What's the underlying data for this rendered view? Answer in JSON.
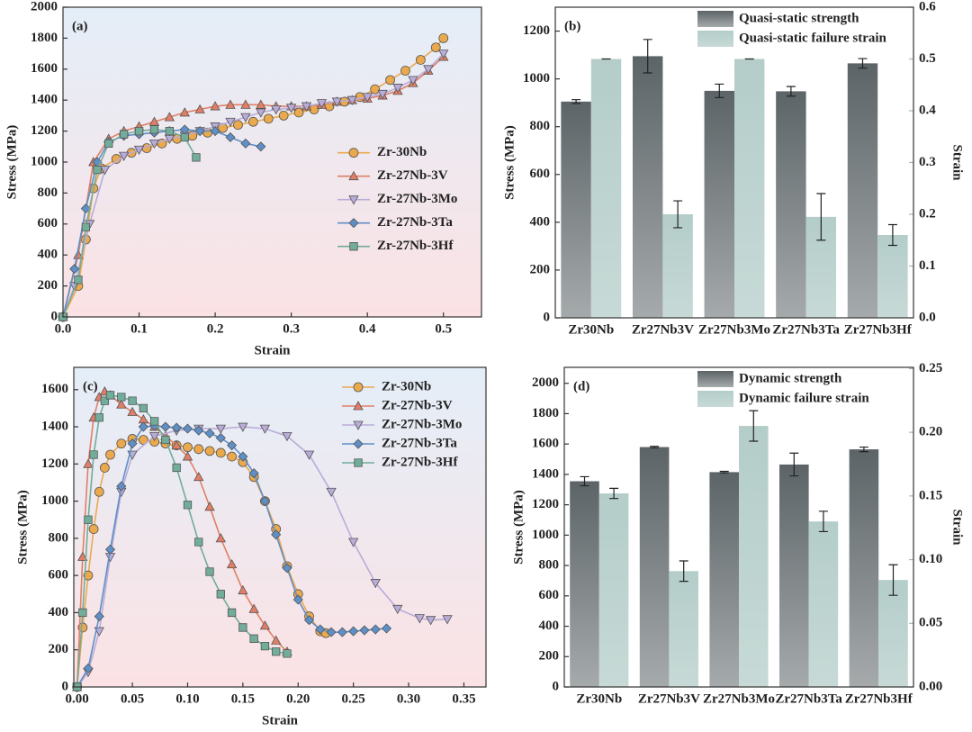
{
  "chart_data": [
    {
      "type": "line",
      "label": "(a)",
      "x_label": "Strain",
      "y_label": "Stress (MPa)",
      "xlim": [
        0,
        0.55
      ],
      "xticks": [
        {
          "value": 0,
          "label": "0.0"
        },
        0.1,
        0.2,
        0.3,
        0.4,
        0.5
      ],
      "ylim": [
        0,
        2000
      ],
      "yticks": [
        0,
        200,
        400,
        600,
        800,
        1000,
        1200,
        1400,
        1600,
        1800,
        2000
      ],
      "legend": "center right",
      "series": [
        {
          "name": "Zr-30Nb",
          "color": "#eba94e",
          "marker": "o",
          "x": [
            0,
            0.02,
            0.03,
            0.04,
            0.05,
            0.07,
            0.09,
            0.11,
            0.13,
            0.15,
            0.17,
            0.19,
            0.21,
            0.23,
            0.25,
            0.27,
            0.29,
            0.31,
            0.33,
            0.35,
            0.37,
            0.39,
            0.41,
            0.43,
            0.45,
            0.47,
            0.49,
            0.5
          ],
          "values": [
            0,
            200,
            500,
            830,
            960,
            1020,
            1060,
            1090,
            1120,
            1150,
            1170,
            1190,
            1220,
            1240,
            1260,
            1280,
            1300,
            1320,
            1340,
            1360,
            1390,
            1420,
            1470,
            1530,
            1590,
            1660,
            1740,
            1800
          ]
        },
        {
          "name": "Zr-27Nb-3V",
          "color": "#e07f66",
          "marker": "^",
          "x": [
            0,
            0.02,
            0.04,
            0.06,
            0.08,
            0.1,
            0.12,
            0.14,
            0.16,
            0.18,
            0.2,
            0.22,
            0.24,
            0.26,
            0.28,
            0.3,
            0.32,
            0.34,
            0.36,
            0.38,
            0.4,
            0.42,
            0.44,
            0.46,
            0.48,
            0.5
          ],
          "values": [
            0,
            400,
            1000,
            1150,
            1200,
            1230,
            1260,
            1290,
            1320,
            1340,
            1360,
            1370,
            1370,
            1370,
            1360,
            1360,
            1360,
            1370,
            1390,
            1400,
            1410,
            1430,
            1460,
            1510,
            1590,
            1680
          ]
        },
        {
          "name": "Zr-27Nb-3Mo",
          "color": "#b9acd8",
          "marker": "v",
          "x": [
            0,
            0.015,
            0.035,
            0.055,
            0.08,
            0.1,
            0.12,
            0.14,
            0.16,
            0.18,
            0.2,
            0.22,
            0.24,
            0.26,
            0.28,
            0.3,
            0.32,
            0.34,
            0.36,
            0.38,
            0.4,
            0.42,
            0.44,
            0.46,
            0.48,
            0.5
          ],
          "values": [
            0,
            200,
            600,
            950,
            1040,
            1080,
            1120,
            1150,
            1170,
            1200,
            1230,
            1260,
            1290,
            1320,
            1340,
            1350,
            1360,
            1380,
            1390,
            1400,
            1420,
            1440,
            1480,
            1530,
            1600,
            1700
          ]
        },
        {
          "name": "Zr-27Nb-3Ta",
          "color": "#5e8fc7",
          "marker": "D",
          "x": [
            0,
            0.015,
            0.03,
            0.045,
            0.06,
            0.08,
            0.1,
            0.12,
            0.14,
            0.16,
            0.18,
            0.2,
            0.22,
            0.24,
            0.26
          ],
          "values": [
            0,
            310,
            700,
            1000,
            1130,
            1170,
            1180,
            1190,
            1200,
            1210,
            1200,
            1200,
            1160,
            1120,
            1100
          ]
        },
        {
          "name": "Zr-27Nb-3Hf",
          "color": "#72ac9a",
          "marker": "s",
          "x": [
            0,
            0.02,
            0.03,
            0.045,
            0.06,
            0.08,
            0.1,
            0.12,
            0.14,
            0.16,
            0.175
          ],
          "values": [
            0,
            240,
            580,
            950,
            1120,
            1180,
            1200,
            1210,
            1200,
            1160,
            1030
          ]
        }
      ]
    },
    {
      "type": "bar",
      "label": "(b)",
      "y_label": "Stress (MPa)",
      "y2_label": "Strain",
      "categories": [
        "Zr30Nb",
        "Zr27Nb3V",
        "Zr27Nb3Mo",
        "Zr27Nb3Ta",
        "Zr27Nb3Hf"
      ],
      "ylim": [
        0,
        1300
      ],
      "yticks": [
        0,
        200,
        400,
        600,
        800,
        1000,
        1200
      ],
      "y2lim": [
        0,
        0.6
      ],
      "y2ticks": [
        {
          "value": 0,
          "label": "0.0"
        },
        0.1,
        0.2,
        0.3,
        0.4,
        0.5,
        0.6
      ],
      "legend": "upper right",
      "series": [
        {
          "name": "Quasi-static strength",
          "color": "#5c6467",
          "values": [
            905,
            1095,
            950,
            948,
            1065
          ],
          "errors": [
            8,
            70,
            28,
            20,
            20
          ]
        },
        {
          "name": "Quasi-static failure strain",
          "color": "#b4cdc9",
          "axis": "y2",
          "values": [
            0.5,
            0.2,
            0.5,
            0.195,
            0.16
          ],
          "errors": [
            0,
            0.026,
            0,
            0.045,
            0.02
          ]
        }
      ]
    },
    {
      "type": "line",
      "label": "(c)",
      "x_label": "Strain",
      "y_label": "Stress (MPa)",
      "xlim": [
        -0.003,
        0.37
      ],
      "xticks": [
        {
          "value": 0,
          "label": "0.00"
        },
        0.05,
        {
          "value": 0.1,
          "label": "0.10"
        },
        0.15,
        {
          "value": 0.2,
          "label": "0.20"
        },
        0.25,
        {
          "value": 0.3,
          "label": "0.30"
        },
        0.35
      ],
      "ylim": [
        0,
        1720
      ],
      "yticks": [
        0,
        200,
        400,
        600,
        800,
        1000,
        1200,
        1400,
        1600
      ],
      "legend": "upper right",
      "series": [
        {
          "name": "Zr-30Nb",
          "color": "#eba94e",
          "marker": "o",
          "x": [
            0,
            0.005,
            0.01,
            0.015,
            0.02,
            0.025,
            0.03,
            0.04,
            0.05,
            0.06,
            0.07,
            0.08,
            0.09,
            0.1,
            0.11,
            0.12,
            0.13,
            0.14,
            0.15,
            0.16,
            0.17,
            0.18,
            0.19,
            0.2,
            0.21,
            0.22,
            0.225
          ],
          "values": [
            0,
            320,
            600,
            850,
            1050,
            1180,
            1250,
            1310,
            1335,
            1330,
            1320,
            1310,
            1300,
            1290,
            1280,
            1270,
            1260,
            1240,
            1210,
            1130,
            1000,
            850,
            650,
            500,
            380,
            300,
            290
          ]
        },
        {
          "name": "Zr-27Nb-3V",
          "color": "#e07f66",
          "marker": "^",
          "x": [
            0,
            0.005,
            0.01,
            0.015,
            0.02,
            0.025,
            0.03,
            0.04,
            0.05,
            0.06,
            0.07,
            0.08,
            0.09,
            0.1,
            0.11,
            0.12,
            0.13,
            0.14,
            0.15,
            0.16,
            0.17,
            0.18,
            0.19
          ],
          "values": [
            0,
            700,
            1200,
            1450,
            1560,
            1590,
            1570,
            1520,
            1480,
            1440,
            1400,
            1350,
            1300,
            1240,
            1130,
            970,
            800,
            660,
            520,
            420,
            330,
            250,
            190
          ]
        },
        {
          "name": "Zr-27Nb-3Mo",
          "color": "#b9acd8",
          "marker": "v",
          "x": [
            0,
            0.01,
            0.02,
            0.03,
            0.04,
            0.05,
            0.07,
            0.09,
            0.11,
            0.13,
            0.15,
            0.17,
            0.19,
            0.21,
            0.23,
            0.25,
            0.27,
            0.29,
            0.31,
            0.32,
            0.335
          ],
          "values": [
            0,
            80,
            300,
            700,
            1050,
            1250,
            1350,
            1380,
            1390,
            1390,
            1400,
            1390,
            1350,
            1250,
            1050,
            780,
            560,
            420,
            370,
            360,
            365
          ]
        },
        {
          "name": "Zr-27Nb-3Ta",
          "color": "#5e8fc7",
          "marker": "D",
          "x": [
            0,
            0.01,
            0.02,
            0.03,
            0.04,
            0.05,
            0.06,
            0.07,
            0.08,
            0.09,
            0.1,
            0.11,
            0.12,
            0.13,
            0.14,
            0.15,
            0.16,
            0.17,
            0.18,
            0.19,
            0.2,
            0.21,
            0.22,
            0.23,
            0.24,
            0.25,
            0.26,
            0.27,
            0.28
          ],
          "values": [
            0,
            100,
            380,
            740,
            1080,
            1310,
            1400,
            1405,
            1400,
            1395,
            1390,
            1380,
            1365,
            1340,
            1300,
            1240,
            1150,
            1000,
            820,
            640,
            470,
            360,
            310,
            295,
            295,
            300,
            305,
            310,
            315
          ]
        },
        {
          "name": "Zr-27Nb-3Hf",
          "color": "#72ac9a",
          "marker": "s",
          "x": [
            0,
            0.005,
            0.01,
            0.015,
            0.02,
            0.025,
            0.03,
            0.04,
            0.05,
            0.06,
            0.07,
            0.08,
            0.09,
            0.1,
            0.11,
            0.12,
            0.13,
            0.14,
            0.15,
            0.16,
            0.17,
            0.18,
            0.19
          ],
          "values": [
            0,
            400,
            900,
            1250,
            1450,
            1540,
            1570,
            1560,
            1540,
            1500,
            1430,
            1330,
            1180,
            980,
            780,
            620,
            500,
            400,
            320,
            260,
            220,
            190,
            180
          ]
        }
      ]
    },
    {
      "type": "bar",
      "label": "(d)",
      "y_label": "Stress (MPa)",
      "y2_label": "Strain",
      "categories": [
        "Zr30Nb",
        "Zr27Nb3V",
        "Zr27Nb3Mo",
        "Zr27Nb3Ta",
        "Zr27Nb3Hf"
      ],
      "ylim": [
        0,
        2105
      ],
      "yticks": [
        0,
        200,
        400,
        600,
        800,
        1000,
        1200,
        1400,
        1600,
        1800,
        2000
      ],
      "y2lim": [
        0,
        0.251
      ],
      "y2ticks": [
        {
          "value": 0,
          "label": "0.00"
        },
        0.05,
        {
          "value": 0.1,
          "label": "0.10"
        },
        0.15,
        {
          "value": 0.2,
          "label": "0.20"
        },
        0.25
      ],
      "legend": "upper right",
      "series": [
        {
          "name": "Dynamic strength",
          "color": "#5c6467",
          "values": [
            1355,
            1580,
            1415,
            1465,
            1565
          ],
          "errors": [
            30,
            5,
            5,
            75,
            15
          ]
        },
        {
          "name": "Dynamic failure strain",
          "color": "#b4cdc9",
          "axis": "y2",
          "values": [
            0.152,
            0.091,
            0.205,
            0.13,
            0.084
          ],
          "errors": [
            0.004,
            0.008,
            0.012,
            0.008,
            0.012
          ]
        }
      ]
    }
  ]
}
